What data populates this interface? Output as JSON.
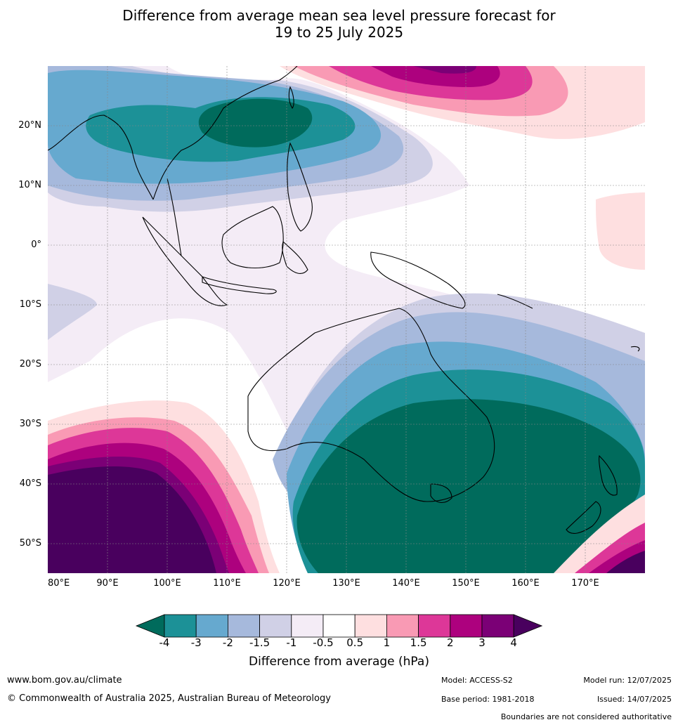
{
  "title": {
    "line1": "Difference from average mean sea level pressure forecast for",
    "line2": "19 to 25 July 2025"
  },
  "lat_labels": [
    "20°N",
    "10°N",
    "0°",
    "10°S",
    "20°S",
    "30°S",
    "40°S",
    "50°S"
  ],
  "lon_labels": [
    "80°E",
    "90°E",
    "100°E",
    "110°E",
    "120°E",
    "130°E",
    "140°E",
    "150°E",
    "160°E",
    "170°E"
  ],
  "colorbar": {
    "ticks": [
      "-4",
      "-3",
      "-2",
      "-1.5",
      "-1",
      "-0.5",
      "0.5",
      "1",
      "1.5",
      "2",
      "3",
      "4"
    ],
    "colors": [
      "#006b5c",
      "#1c9197",
      "#66a9cf",
      "#a6b9dc",
      "#d0d0e6",
      "#f4ecf6",
      "#ffffff",
      "#fedfe0",
      "#f99ab4",
      "#dd3798",
      "#ad017e",
      "#7b0076",
      "#49005e"
    ],
    "label": "Difference from average (hPa)"
  },
  "map": {
    "extent_lon": [
      80,
      180
    ],
    "extent_lat": [
      -55,
      30
    ]
  },
  "footer": {
    "website": "www.bom.gov.au/climate",
    "copyright": "© Commonwealth of Australia 2025, Australian Bureau of Meteorology",
    "model": "Model: ACCESS-S2",
    "base_period": "Base period: 1981-2018",
    "model_run": "Model run: 12/07/2025",
    "issued": "Issued: 14/07/2025",
    "disclaimer": "Boundaries are not considered authoritative"
  }
}
